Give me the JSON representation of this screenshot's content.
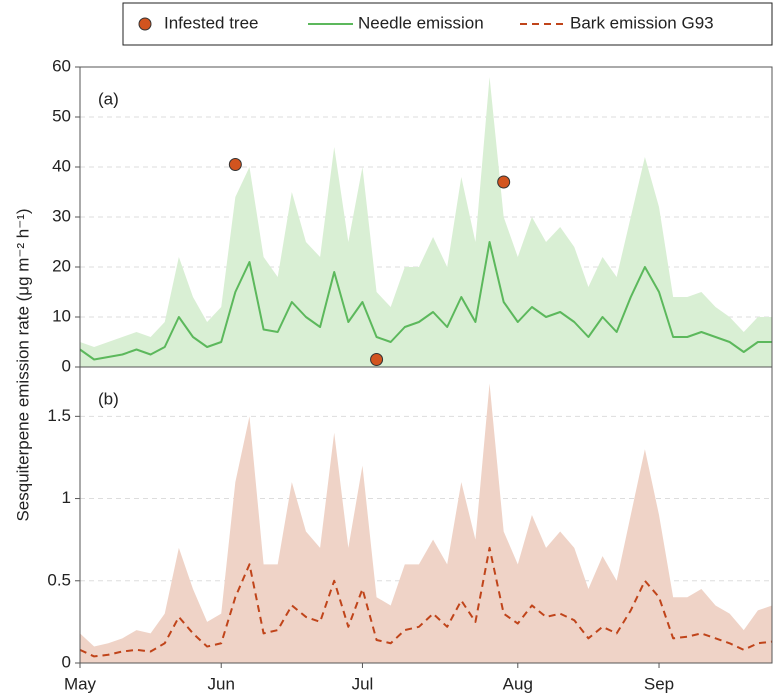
{
  "chart_data": {
    "type": "line",
    "y_label": "Sesquiterpene emission rate (μg m⁻² h⁻¹)",
    "categories": [
      "May",
      null,
      null,
      null,
      null,
      null,
      null,
      null,
      null,
      null,
      "Jun",
      null,
      null,
      null,
      null,
      null,
      null,
      null,
      null,
      null,
      "Jul",
      null,
      null,
      null,
      null,
      null,
      null,
      null,
      null,
      null,
      null,
      "Aug",
      null,
      null,
      null,
      null,
      null,
      null,
      null,
      null,
      null,
      "Sep",
      null,
      null,
      null,
      null,
      null,
      null,
      null,
      null
    ],
    "grid": true,
    "panels": [
      {
        "label": "(a)",
        "ylim": [
          0,
          60
        ],
        "yticks": [
          0,
          10,
          20,
          30,
          40,
          50,
          60
        ],
        "series": [
          {
            "name": "Needle emission",
            "color": "#5cb85c",
            "band_color": "#d9efd4",
            "style": "solid",
            "values": [
              3.5,
              1.5,
              2,
              2.5,
              3.5,
              2.5,
              4,
              10,
              6,
              4,
              5,
              15,
              21,
              7.5,
              7,
              13,
              10,
              8,
              19,
              9,
              13,
              6,
              5,
              8,
              9,
              11,
              8,
              14,
              9,
              25,
              13,
              9,
              12,
              10,
              11,
              9,
              6,
              10,
              7,
              14,
              20,
              15,
              6,
              6,
              7,
              6,
              5,
              3,
              5,
              5
            ],
            "band_upper": [
              5,
              4,
              5,
              6,
              7,
              6,
              9,
              22,
              14,
              9,
              12,
              34,
              40,
              22,
              18,
              35,
              25,
              22,
              44,
              25,
              40,
              15,
              12,
              20,
              20,
              26,
              20,
              38,
              25,
              58,
              30,
              22,
              30,
              25,
              28,
              24,
              16,
              22,
              18,
              30,
              42,
              32,
              14,
              14,
              15,
              12,
              10,
              7,
              10,
              10
            ]
          },
          {
            "name": "Infested tree",
            "type": "scatter",
            "color": "#d2541f",
            "values": [
              null,
              null,
              null,
              null,
              null,
              null,
              null,
              null,
              null,
              null,
              null,
              40.5,
              null,
              null,
              null,
              null,
              null,
              null,
              null,
              null,
              null,
              1.5,
              null,
              null,
              null,
              null,
              null,
              null,
              null,
              null,
              37,
              null,
              null,
              null,
              null,
              null,
              null,
              null,
              null,
              null,
              null,
              null,
              null,
              null,
              null,
              null,
              null,
              null,
              null,
              null
            ]
          }
        ]
      },
      {
        "label": "(b)",
        "ylim": [
          0,
          1.8
        ],
        "yticks": [
          0,
          0.5,
          1,
          1.5
        ],
        "series": [
          {
            "name": "Bark emission G93",
            "color": "#c0441a",
            "band_color": "#efd3c7",
            "style": "dashed",
            "values": [
              0.08,
              0.04,
              0.05,
              0.07,
              0.08,
              0.07,
              0.12,
              0.28,
              0.18,
              0.1,
              0.12,
              0.4,
              0.6,
              0.18,
              0.2,
              0.35,
              0.28,
              0.25,
              0.5,
              0.22,
              0.45,
              0.14,
              0.12,
              0.2,
              0.22,
              0.3,
              0.22,
              0.38,
              0.25,
              0.7,
              0.3,
              0.24,
              0.35,
              0.28,
              0.3,
              0.26,
              0.15,
              0.22,
              0.18,
              0.32,
              0.5,
              0.4,
              0.15,
              0.16,
              0.18,
              0.15,
              0.12,
              0.08,
              0.12,
              0.13
            ],
            "band_upper": [
              0.18,
              0.1,
              0.12,
              0.15,
              0.2,
              0.18,
              0.3,
              0.7,
              0.45,
              0.25,
              0.3,
              1.1,
              1.5,
              0.6,
              0.6,
              1.1,
              0.8,
              0.7,
              1.4,
              0.7,
              1.2,
              0.4,
              0.35,
              0.6,
              0.6,
              0.75,
              0.6,
              1.1,
              0.75,
              1.7,
              0.8,
              0.6,
              0.9,
              0.7,
              0.8,
              0.7,
              0.45,
              0.65,
              0.5,
              0.9,
              1.3,
              0.9,
              0.4,
              0.4,
              0.45,
              0.35,
              0.3,
              0.2,
              0.32,
              0.35
            ]
          }
        ]
      }
    ]
  }
}
